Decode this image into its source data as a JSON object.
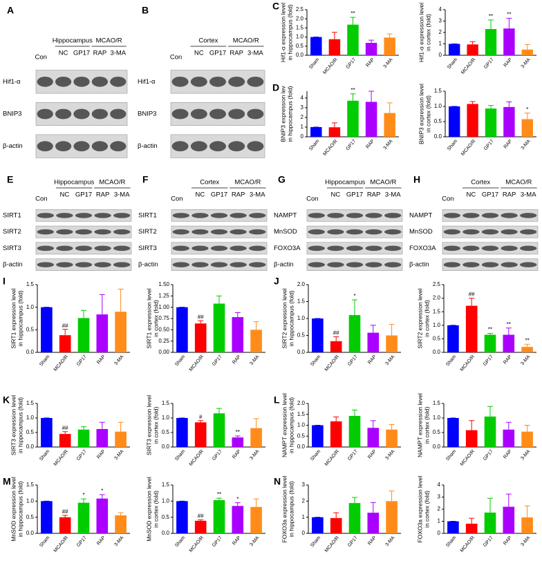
{
  "blots": [
    {
      "label": "A",
      "control": "Con",
      "region": "Hippocampus",
      "group": "MCAO/R",
      "lanes": [
        "NC",
        "GP17",
        "RAP",
        "3-MA"
      ],
      "rows": [
        "Hif1-α",
        "BNIP3",
        "β-actin"
      ]
    },
    {
      "label": "B",
      "control": "Con",
      "region": "Cortex",
      "group": "MCAO/R",
      "lanes": [
        "NC",
        "GP17",
        "RAP",
        "3-MA"
      ],
      "rows": [
        "Hif1-α",
        "BNIP3",
        "β-actin"
      ]
    },
    {
      "label": "E",
      "control": "Con",
      "region": "Hippocampus",
      "group": "MCAO/R",
      "lanes": [
        "NC",
        "GP17",
        "RAP",
        "3-MA"
      ],
      "rows": [
        "SIRT1",
        "SIRT2",
        "SIRT3",
        "β-actin"
      ]
    },
    {
      "label": "F",
      "control": "Con",
      "region": "Cortex",
      "group": "MCAO/R",
      "lanes": [
        "NC",
        "GP17",
        "RAP",
        "3-MA"
      ],
      "rows": [
        "SIRT1",
        "SIRT2",
        "SIRT3",
        "β-actin"
      ]
    },
    {
      "label": "G",
      "control": "Con",
      "region": "Hippocampus",
      "group": "MCAO/R",
      "lanes": [
        "NC",
        "GP17",
        "RAP",
        "3-MA"
      ],
      "rows": [
        "NAMPT",
        "MnSOD",
        "FOXO3A",
        "β-actin"
      ]
    },
    {
      "label": "H",
      "control": "Con",
      "region": "Cortex",
      "group": "MCAO/R",
      "lanes": [
        "NC",
        "GP17",
        "RAP",
        "3-MA"
      ],
      "rows": [
        "NAMPT",
        "MnSOD",
        "FOXO3A",
        "β-actin"
      ]
    }
  ],
  "chart_data": [
    {
      "type": "bar",
      "panel": "C",
      "ylabel": [
        "Hif1-α expression level",
        "in hippocampus (fold)"
      ],
      "categories": [
        "Sham",
        "MCAO/R",
        "GP17",
        "RAP",
        "3-MA"
      ],
      "values": [
        1.0,
        0.88,
        1.68,
        0.68,
        0.97
      ],
      "errors": [
        0,
        0.38,
        0.4,
        0.15,
        0.2
      ],
      "marks": [
        null,
        null,
        "**",
        null,
        null
      ],
      "colors": [
        "#0000ff",
        "#ff0000",
        "#00cc00",
        "#aa00ff",
        "#ff8c1a"
      ],
      "ylim": [
        0,
        2.5
      ],
      "yticks": [
        {
          "value": 0,
          "label": "0.0"
        },
        0.5,
        {
          "value": 1,
          "label": "1.0"
        },
        1.5,
        {
          "value": 2,
          "label": "2.0"
        },
        2.5
      ]
    },
    {
      "type": "bar",
      "ylabel": [
        "Hif1-α expression level",
        "in cortex (fold)"
      ],
      "categories": [
        "Sham",
        "MCAO/R",
        "GP17",
        "RAP",
        "3-MA"
      ],
      "values": [
        1.0,
        0.95,
        2.3,
        2.35,
        0.5
      ],
      "errors": [
        0,
        0.25,
        0.8,
        0.9,
        0.45
      ],
      "marks": [
        null,
        null,
        "**",
        "**",
        null
      ],
      "colors": [
        "#0000ff",
        "#ff0000",
        "#00cc00",
        "#aa00ff",
        "#ff8c1a"
      ],
      "ylim": [
        0,
        4
      ],
      "yticks": [
        0,
        1,
        2,
        3,
        4
      ]
    },
    {
      "type": "bar",
      "panel": "D",
      "ylabel": [
        "BNIP3 expression lev",
        "in hippocampus (fold)"
      ],
      "categories": [
        "Sham",
        "MCAO/R",
        "GP17",
        "RAP",
        "3-MA"
      ],
      "values": [
        1.0,
        0.98,
        3.72,
        3.6,
        2.45
      ],
      "errors": [
        0,
        0.45,
        0.7,
        1.1,
        1.05
      ],
      "marks": [
        null,
        null,
        "**",
        null,
        null
      ],
      "colors": [
        "#0000ff",
        "#ff0000",
        "#00cc00",
        "#aa00ff",
        "#ff8c1a"
      ],
      "ylim": [
        0,
        4.7
      ],
      "yticks": [
        0,
        1,
        2,
        3,
        4
      ]
    },
    {
      "type": "bar",
      "ylabel": [
        "BNIP3 expression level",
        "in cortex (fold)"
      ],
      "categories": [
        "Sham",
        "MCAO/R",
        "GP17",
        "RAP",
        "3-MA"
      ],
      "values": [
        1.0,
        1.08,
        0.93,
        0.98,
        0.58
      ],
      "errors": [
        0,
        0.08,
        0.1,
        0.17,
        0.2
      ],
      "marks": [
        null,
        null,
        null,
        null,
        "*"
      ],
      "colors": [
        "#0000ff",
        "#ff0000",
        "#00cc00",
        "#aa00ff",
        "#ff8c1a"
      ],
      "ylim": [
        0,
        1.5
      ],
      "yticks": [
        {
          "value": 0,
          "label": "0.0"
        },
        0.5,
        {
          "value": 1,
          "label": "1.0"
        },
        1.5
      ]
    },
    {
      "type": "bar",
      "panel": "I",
      "ylabel": [
        "SIRT1 expression level",
        "in hippocampus (fold)"
      ],
      "categories": [
        "Sham",
        "MCAO/R",
        "GP17",
        "RAP",
        "3-MA"
      ],
      "values": [
        1.0,
        0.38,
        0.76,
        0.84,
        0.9
      ],
      "errors": [
        0,
        0.13,
        0.17,
        0.44,
        0.5
      ],
      "marks": [
        null,
        "##",
        null,
        null,
        null
      ],
      "colors": [
        "#0000ff",
        "#ff0000",
        "#00cc00",
        "#aa00ff",
        "#ff8c1a"
      ],
      "ylim": [
        0,
        1.5
      ],
      "yticks": [
        {
          "value": 0,
          "label": "0.0"
        },
        0.5,
        {
          "value": 1,
          "label": "1.0"
        },
        1.5
      ]
    },
    {
      "type": "bar",
      "ylabel": [
        "SIRT1 expression level",
        "in cortex (fold)"
      ],
      "categories": [
        "Sham",
        "MCAO/R",
        "GP17",
        "RAP",
        "3-MA"
      ],
      "values": [
        1.0,
        0.64,
        1.08,
        0.78,
        0.5
      ],
      "errors": [
        0,
        0.06,
        0.17,
        0.1,
        0.18
      ],
      "marks": [
        null,
        "##",
        null,
        null,
        null
      ],
      "colors": [
        "#0000ff",
        "#ff0000",
        "#00cc00",
        "#aa00ff",
        "#ff8c1a"
      ],
      "ylim": [
        0,
        1.5
      ],
      "yticks": [
        {
          "value": 0,
          "label": "0.00"
        },
        0.25,
        {
          "value": 0.5,
          "label": "0.50"
        },
        0.75,
        {
          "value": 1,
          "label": "1.00"
        },
        1.25,
        {
          "value": 1.5,
          "label": "1.50"
        }
      ]
    },
    {
      "type": "bar",
      "panel": "J",
      "ylabel": [
        "SIRT2 expression level",
        "in hippocampus (fold)"
      ],
      "categories": [
        "Sham",
        "MCAO/R",
        "GP17",
        "RAP",
        "3-MA"
      ],
      "values": [
        1.0,
        0.33,
        1.1,
        0.58,
        0.5
      ],
      "errors": [
        0,
        0.13,
        0.45,
        0.22,
        0.33
      ],
      "marks": [
        null,
        "##",
        "*",
        null,
        null
      ],
      "colors": [
        "#0000ff",
        "#ff0000",
        "#00cc00",
        "#aa00ff",
        "#ff8c1a"
      ],
      "ylim": [
        0,
        2
      ],
      "yticks": [
        {
          "value": 0,
          "label": "0.0"
        },
        0.5,
        {
          "value": 1,
          "label": "1.0"
        },
        1.5,
        {
          "value": 2,
          "label": "2.0"
        }
      ]
    },
    {
      "type": "bar",
      "ylabel": [
        "SIRT2 expression level",
        "in cortex (fold)"
      ],
      "categories": [
        "Sham",
        "MCAO/R",
        "GP17",
        "RAP",
        "3-MA"
      ],
      "values": [
        1.0,
        1.72,
        0.65,
        0.65,
        0.2
      ],
      "errors": [
        0,
        0.28,
        0.05,
        0.25,
        0.1
      ],
      "marks": [
        null,
        "##",
        "**",
        "**",
        "**"
      ],
      "colors": [
        "#0000ff",
        "#ff0000",
        "#00cc00",
        "#aa00ff",
        "#ff8c1a"
      ],
      "ylim": [
        0,
        2.5
      ],
      "yticks": [
        {
          "value": 0,
          "label": "0.0"
        },
        0.5,
        {
          "value": 1,
          "label": "1.0"
        },
        1.5,
        {
          "value": 2,
          "label": "2.0"
        },
        2.5
      ]
    },
    {
      "type": "bar",
      "panel": "K",
      "ylabel": [
        "SIRT3 expression level",
        "in hippocampus (fold)"
      ],
      "categories": [
        "Sham",
        "MCAO/R",
        "GP17",
        "RAP",
        "3-MA"
      ],
      "values": [
        1.0,
        0.45,
        0.6,
        0.62,
        0.53
      ],
      "errors": [
        0,
        0.08,
        0.1,
        0.23,
        0.32
      ],
      "marks": [
        null,
        "##",
        null,
        null,
        null
      ],
      "colors": [
        "#0000ff",
        "#ff0000",
        "#00cc00",
        "#aa00ff",
        "#ff8c1a"
      ],
      "ylim": [
        0,
        1.5
      ],
      "yticks": [
        {
          "value": 0,
          "label": "0.0"
        },
        0.5,
        {
          "value": 1,
          "label": "1.0"
        },
        1.5
      ]
    },
    {
      "type": "bar",
      "ylabel": [
        "SIRT3 expression level",
        "in cortex (fold)"
      ],
      "categories": [
        "Sham",
        "MCAO/R",
        "GP17",
        "RAP",
        "3-MA"
      ],
      "values": [
        1.0,
        0.85,
        1.16,
        0.33,
        0.65
      ],
      "errors": [
        0,
        0.06,
        0.17,
        0.05,
        0.33
      ],
      "marks": [
        null,
        "#",
        null,
        "**",
        null
      ],
      "colors": [
        "#0000ff",
        "#ff0000",
        "#00cc00",
        "#aa00ff",
        "#ff8c1a"
      ],
      "ylim": [
        0,
        1.5
      ],
      "yticks": [
        {
          "value": 0,
          "label": "0.0"
        },
        0.5,
        {
          "value": 1,
          "label": "1.0"
        },
        1.5
      ]
    },
    {
      "type": "bar",
      "panel": "L",
      "ylabel": [
        "NAMPT expression level",
        "in hippocampus (fold)"
      ],
      "categories": [
        "Sham",
        "MCAO/R",
        "GP17",
        "RAP",
        "3-MA"
      ],
      "values": [
        1.0,
        1.18,
        1.43,
        0.88,
        0.8
      ],
      "errors": [
        0,
        0.2,
        0.27,
        0.33,
        0.23
      ],
      "marks": [
        null,
        null,
        null,
        null,
        null
      ],
      "colors": [
        "#0000ff",
        "#ff0000",
        "#00cc00",
        "#aa00ff",
        "#ff8c1a"
      ],
      "ylim": [
        0,
        2
      ],
      "yticks": [
        {
          "value": 0,
          "label": "0.0"
        },
        0.5,
        {
          "value": 1,
          "label": "1.0"
        },
        1.5,
        {
          "value": 2,
          "label": "2.0"
        }
      ]
    },
    {
      "type": "bar",
      "ylabel": [
        "NAMPT expression level",
        "in cortex (fold)"
      ],
      "categories": [
        "Sham",
        "MCAO/R",
        "GP17",
        "RAP",
        "3-MA"
      ],
      "values": [
        1.0,
        0.58,
        1.05,
        0.6,
        0.53
      ],
      "errors": [
        0,
        0.33,
        0.35,
        0.25,
        0.22
      ],
      "marks": [
        null,
        null,
        null,
        null,
        null
      ],
      "colors": [
        "#0000ff",
        "#ff0000",
        "#00cc00",
        "#aa00ff",
        "#ff8c1a"
      ],
      "ylim": [
        0,
        1.5
      ],
      "yticks": [
        {
          "value": 0,
          "label": "0.0"
        },
        0.5,
        {
          "value": 1,
          "label": "1.0"
        },
        1.5
      ]
    },
    {
      "type": "bar",
      "panel": "M",
      "ylabel": [
        "MnSOD expression level",
        "in hippocampus (fold)"
      ],
      "categories": [
        "Sham",
        "MCAO/R",
        "GP17",
        "RAP",
        "3-MA"
      ],
      "values": [
        1.0,
        0.5,
        0.95,
        1.08,
        0.56
      ],
      "errors": [
        0,
        0.06,
        0.12,
        0.12,
        0.08
      ],
      "marks": [
        null,
        "##",
        "*",
        "*",
        null
      ],
      "colors": [
        "#0000ff",
        "#ff0000",
        "#00cc00",
        "#aa00ff",
        "#ff8c1a"
      ],
      "ylim": [
        0,
        1.5
      ],
      "yticks": [
        {
          "value": 0,
          "label": "0.0"
        },
        0.5,
        {
          "value": 1,
          "label": "1.0"
        },
        1.5
      ]
    },
    {
      "type": "bar",
      "ylabel": [
        "MnSOD expression level",
        "in cortex (fold)"
      ],
      "categories": [
        "Sham",
        "MCAO/R",
        "GP17",
        "RAP",
        "3-MA"
      ],
      "values": [
        1.0,
        0.39,
        1.03,
        0.85,
        0.82
      ],
      "errors": [
        0,
        0.03,
        0.06,
        0.1,
        0.25
      ],
      "marks": [
        null,
        "##",
        "**",
        "*",
        null
      ],
      "colors": [
        "#0000ff",
        "#ff0000",
        "#00cc00",
        "#aa00ff",
        "#ff8c1a"
      ],
      "ylim": [
        0,
        1.5
      ],
      "yticks": [
        {
          "value": 0,
          "label": "0.0"
        },
        0.5,
        {
          "value": 1,
          "label": "1.0"
        },
        1.5
      ]
    },
    {
      "type": "bar",
      "panel": "N",
      "ylabel": [
        "FOXO3a expression level",
        "in hippocampus (fold)"
      ],
      "categories": [
        "Sham",
        "MCAO/R",
        "GP17",
        "RAP",
        "3-MA"
      ],
      "values": [
        1.0,
        0.95,
        1.88,
        1.28,
        2.0
      ],
      "errors": [
        0,
        0.33,
        0.35,
        0.63,
        0.63
      ],
      "marks": [
        null,
        null,
        null,
        null,
        null
      ],
      "colors": [
        "#0000ff",
        "#ff0000",
        "#00cc00",
        "#aa00ff",
        "#ff8c1a"
      ],
      "ylim": [
        0,
        3
      ],
      "yticks": [
        0,
        1,
        2,
        3
      ]
    },
    {
      "type": "bar",
      "ylabel": [
        "FOXO3a expression level",
        "in cortex (fold)"
      ],
      "categories": [
        "Sham",
        "MCAO/R",
        "GP17",
        "RAP",
        "3-MA"
      ],
      "values": [
        1.0,
        0.8,
        1.72,
        2.2,
        1.32
      ],
      "errors": [
        0,
        0.45,
        1.18,
        1.05,
        0.95
      ],
      "marks": [
        null,
        null,
        null,
        null,
        null
      ],
      "colors": [
        "#0000ff",
        "#ff0000",
        "#00cc00",
        "#aa00ff",
        "#ff8c1a"
      ],
      "ylim": [
        0,
        4
      ],
      "yticks": [
        0,
        1,
        2,
        3,
        4
      ]
    }
  ]
}
